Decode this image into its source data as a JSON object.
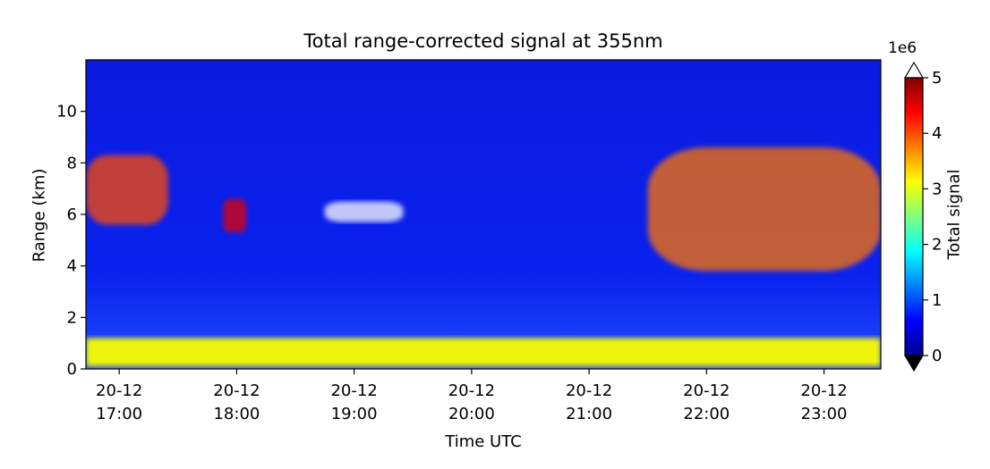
{
  "chart_data": {
    "type": "heatmap",
    "title": "Total range-corrected signal at 355nm",
    "xlabel": "Time UTC",
    "ylabel": "Range (km)",
    "x_ticks": [
      {
        "date": "20-12",
        "time": "17:00"
      },
      {
        "date": "20-12",
        "time": "18:00"
      },
      {
        "date": "20-12",
        "time": "19:00"
      },
      {
        "date": "20-12",
        "time": "20:00"
      },
      {
        "date": "20-12",
        "time": "21:00"
      },
      {
        "date": "20-12",
        "time": "22:00"
      },
      {
        "date": "20-12",
        "time": "23:00"
      }
    ],
    "xlim": [
      "20-12 16:43",
      "20-12 23:29"
    ],
    "y_ticks": [
      0,
      2,
      4,
      6,
      8,
      10
    ],
    "ylim": [
      0,
      12
    ],
    "colorbar": {
      "label": "Total signal",
      "multiplier": "1e6",
      "ticks": [
        0,
        1,
        2,
        3,
        4,
        5
      ],
      "range": [
        0,
        5
      ],
      "colormap": "jet",
      "extend": "both"
    },
    "features": [
      {
        "name": "boundary-layer",
        "time_start": "16:43",
        "time_end": "23:29",
        "range_km": [
          0.1,
          1.2
        ],
        "signal_1e6": 3.1
      },
      {
        "name": "cloud",
        "time_start": "16:43",
        "time_end": "17:25",
        "range_km": [
          5.6,
          8.3
        ],
        "signal_1e6": 4.0
      },
      {
        "name": "cloud",
        "time_start": "17:53",
        "time_end": "18:05",
        "range_km": [
          5.3,
          6.6
        ],
        "signal_1e6": 4.5
      },
      {
        "name": "saturated-cloud",
        "time_start": "18:45",
        "time_end": "19:25",
        "range_km": [
          5.7,
          6.5
        ],
        "signal_1e6": 5.5
      },
      {
        "name": "cloud",
        "time_start": "21:30",
        "time_end": "23:29",
        "range_km": [
          3.8,
          8.6
        ],
        "signal_1e6": 3.8
      }
    ]
  }
}
